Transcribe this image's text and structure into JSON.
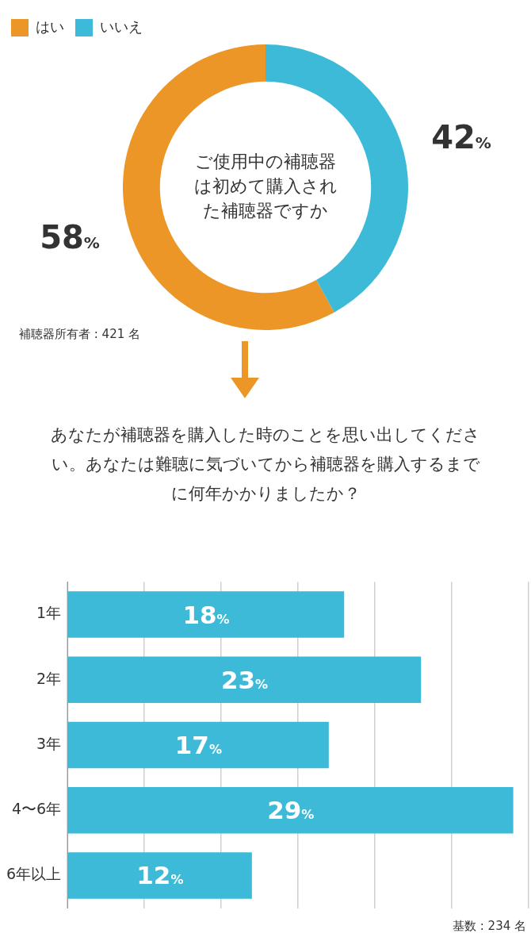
{
  "chart_data": [
    {
      "type": "donut",
      "title": "ご使用中の補聴器は初めて購入された補聴器ですか",
      "categories": [
        "はい",
        "いいえ"
      ],
      "values": [
        58,
        42
      ],
      "colors": [
        "#ec9628",
        "#3dbad8"
      ],
      "value_labels": [
        "58%",
        "42%"
      ],
      "legend": "top left",
      "annotations": [
        "補聴器所有者 : 421 名"
      ]
    },
    {
      "type": "bar",
      "orientation": "horizontal",
      "title": "あなたが補聴器を購入した時のことを思い出してください。あなたは難聴に気づいてから補聴器を購入するまでに何年かかりましたか？",
      "categories": [
        "1年",
        "2年",
        "3年",
        "4〜6年",
        "6年以上"
      ],
      "values": [
        18,
        23,
        17,
        29,
        12
      ],
      "color": "#3dbad8",
      "value_labels": [
        "18%",
        "23%",
        "17%",
        "29%",
        "12%"
      ],
      "xlim": [
        0,
        30
      ],
      "xticks": [
        {
          "value": 0,
          "label": null
        },
        {
          "value": 5,
          "label": null
        },
        {
          "value": 10,
          "label": null
        },
        {
          "value": 15,
          "label": null
        },
        {
          "value": 20,
          "label": null
        },
        {
          "value": 25,
          "label": null
        },
        {
          "value": 30,
          "label": null
        }
      ],
      "tick_labels": "y",
      "grid": "x",
      "annotations": [
        "基数 : 234 名"
      ]
    }
  ]
}
